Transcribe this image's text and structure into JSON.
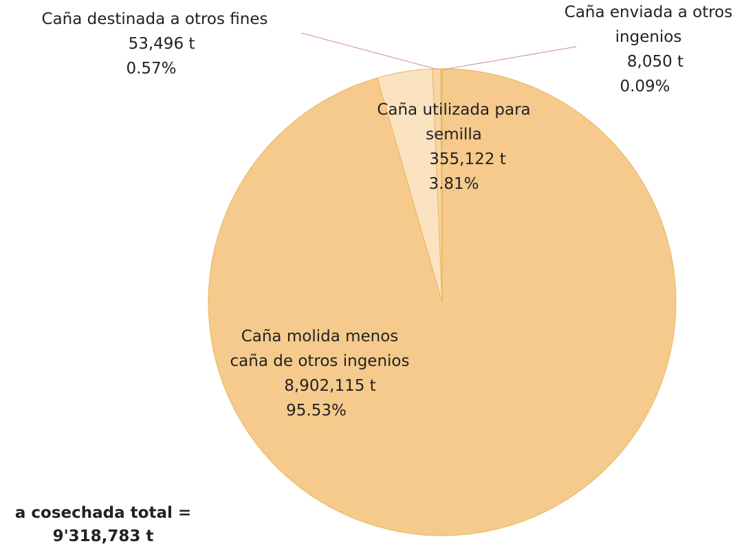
{
  "chart_data": {
    "type": "pie",
    "categories": [
      "Caña molida menos caña de otros ingenios",
      "Caña utilizada para semilla",
      "Caña destinada a otros fines",
      "Caña enviada a otros ingenios"
    ],
    "values": [
      8902115,
      355122,
      53496,
      8050
    ],
    "value_labels": [
      "8,902,115 t",
      "355,122 t",
      "53,496 t",
      "8,050 t"
    ],
    "percentages": [
      95.53,
      3.81,
      0.57,
      0.09
    ],
    "percentage_labels": [
      "95.53%",
      "3.81%",
      "0.57%",
      "0.09%"
    ],
    "colors": [
      "#f5ca8c",
      "#fbe2c0",
      "#f8d5a6",
      "#f2c27e"
    ],
    "annotation": [
      "a cosechada total =",
      "9'318,783 t"
    ]
  }
}
